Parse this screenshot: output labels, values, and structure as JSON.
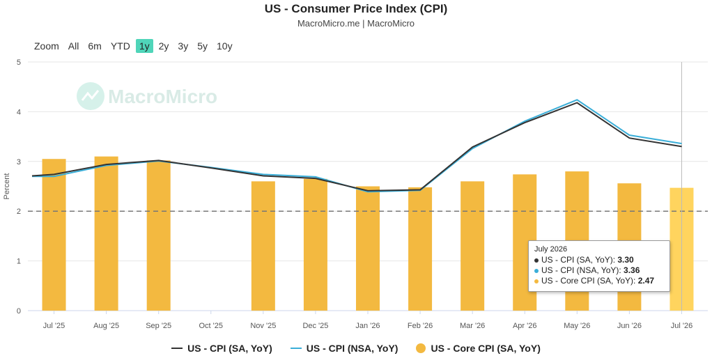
{
  "title": "US - Consumer Price Index (CPI)",
  "subtitle": "MacroMicro.me | MacroMicro",
  "watermark": "MacroMicro",
  "range_selector": {
    "zoom_label": "Zoom",
    "buttons": [
      "All",
      "6m",
      "YTD",
      "1y",
      "2y",
      "3y",
      "5y",
      "10y"
    ],
    "active": "1y"
  },
  "chart_data": {
    "type": "bar",
    "categories": [
      "Jul '25",
      "Aug '25",
      "Sep '25",
      "Oct '25",
      "Nov '25",
      "Dec '25",
      "Jan '26",
      "Feb '26",
      "Mar '26",
      "Apr '26",
      "May '26",
      "Jun '26",
      "Jul '26"
    ],
    "ylabel": "Percent",
    "ylim": [
      0,
      5
    ],
    "yticks": [
      0,
      1,
      2,
      3,
      4,
      5
    ],
    "reference_line": 2,
    "grid": true,
    "legend_position": "bottom",
    "series": [
      {
        "name": "US - CPI (SA, YoY)",
        "type": "line",
        "color": "#333333",
        "values": [
          2.74,
          2.94,
          3.02,
          2.87,
          2.71,
          2.66,
          2.41,
          2.43,
          3.29,
          3.78,
          4.18,
          3.47,
          3.3
        ]
      },
      {
        "name": "US - CPI (NSA, YoY)",
        "type": "line",
        "color": "#3aaed8",
        "values": [
          2.7,
          2.92,
          3.01,
          2.88,
          2.74,
          2.69,
          2.39,
          2.42,
          3.26,
          3.81,
          4.24,
          3.53,
          3.36
        ]
      },
      {
        "name": "US - Core CPI (SA, YoY)",
        "type": "bar",
        "color": "#f3b940",
        "values": [
          3.05,
          3.1,
          3.02,
          null,
          2.6,
          2.65,
          2.5,
          2.48,
          2.6,
          2.74,
          2.8,
          2.56,
          2.47
        ]
      }
    ]
  },
  "tooltip": {
    "date": "July 2026",
    "rows": [
      {
        "label": "US - CPI (SA, YoY)",
        "value": "3.30",
        "color": "#333333"
      },
      {
        "label": "US - CPI (NSA, YoY)",
        "value": "3.36",
        "color": "#3aaed8"
      },
      {
        "label": "US - Core CPI (SA, YoY)",
        "value": "2.47",
        "color": "#f3b940"
      }
    ]
  },
  "highlight_bar_color": "#ffd45e"
}
